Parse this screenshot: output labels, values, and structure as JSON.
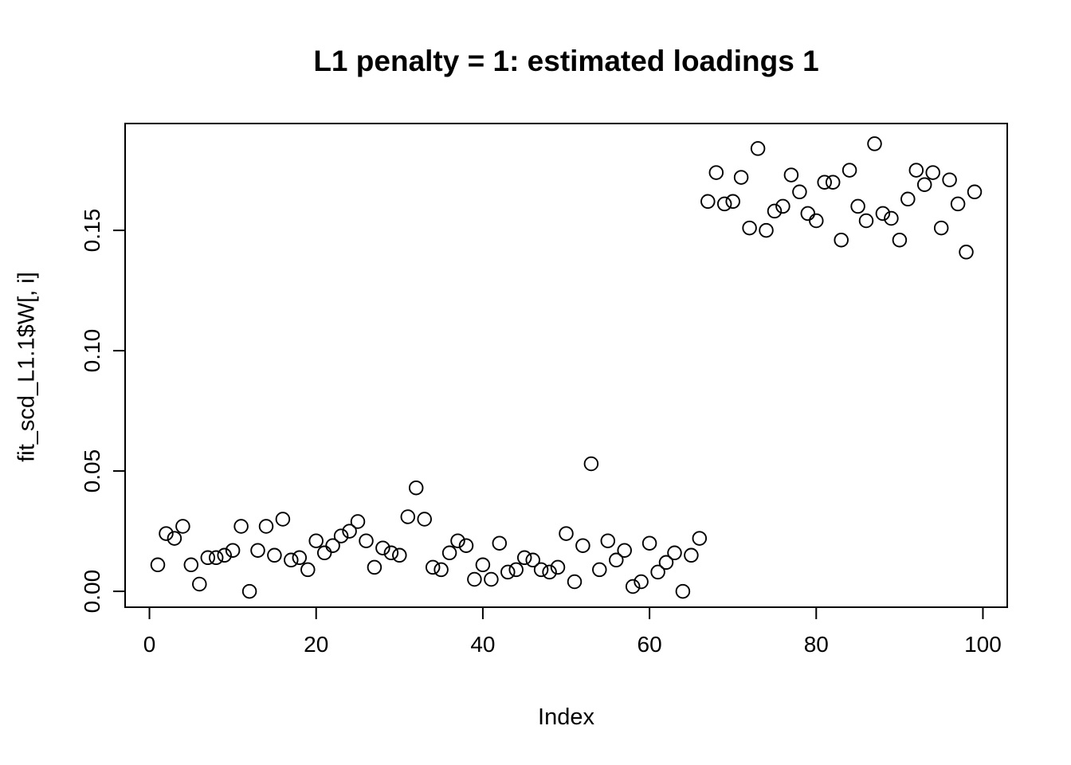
{
  "chart_data": {
    "type": "scatter",
    "title": "L1 penalty = 1: estimated loadings 1",
    "xlabel": "Index",
    "ylabel": "fit_scd_L1.1$W[, i]",
    "x_ticks": [
      0,
      20,
      40,
      60,
      80,
      100
    ],
    "x_tick_labels": [
      "0",
      "20",
      "40",
      "60",
      "80",
      "100"
    ],
    "y_ticks": [
      0.0,
      0.05,
      0.1,
      0.15
    ],
    "y_tick_labels": [
      "0.00",
      "0.05",
      "0.10",
      "0.15"
    ],
    "xlim": [
      -2.92,
      102.92
    ],
    "ylim": [
      -0.0066,
      0.1944
    ],
    "grid": false,
    "legend": null,
    "point_style": "open-circle",
    "colors": {
      "points": "#000000",
      "axis": "#000000",
      "background": "#ffffff"
    },
    "x": [
      1,
      2,
      3,
      4,
      5,
      6,
      7,
      8,
      9,
      10,
      11,
      12,
      13,
      14,
      15,
      16,
      17,
      18,
      19,
      20,
      21,
      22,
      23,
      24,
      25,
      26,
      27,
      28,
      29,
      30,
      31,
      32,
      33,
      34,
      35,
      36,
      37,
      38,
      39,
      40,
      41,
      42,
      43,
      44,
      45,
      46,
      47,
      48,
      49,
      50,
      51,
      52,
      53,
      54,
      55,
      56,
      57,
      58,
      59,
      60,
      61,
      62,
      63,
      64,
      65,
      66,
      67,
      68,
      69,
      70,
      71,
      72,
      73,
      74,
      75,
      76,
      77,
      78,
      79,
      80,
      81,
      82,
      83,
      84,
      85,
      86,
      87,
      88,
      89,
      90,
      91,
      92,
      93,
      94,
      95,
      96,
      97,
      98,
      99
    ],
    "y": [
      0.011,
      0.024,
      0.022,
      0.027,
      0.011,
      0.003,
      0.014,
      0.014,
      0.015,
      0.017,
      0.027,
      0.0,
      0.017,
      0.027,
      0.015,
      0.03,
      0.013,
      0.014,
      0.009,
      0.021,
      0.016,
      0.019,
      0.023,
      0.025,
      0.029,
      0.021,
      0.01,
      0.018,
      0.016,
      0.015,
      0.031,
      0.043,
      0.03,
      0.01,
      0.009,
      0.016,
      0.021,
      0.019,
      0.005,
      0.011,
      0.005,
      0.02,
      0.008,
      0.009,
      0.014,
      0.013,
      0.009,
      0.008,
      0.01,
      0.024,
      0.004,
      0.019,
      0.053,
      0.009,
      0.021,
      0.013,
      0.017,
      0.002,
      0.004,
      0.02,
      0.008,
      0.012,
      0.016,
      0.0,
      0.015,
      0.022,
      0.162,
      0.174,
      0.161,
      0.162,
      0.172,
      0.151,
      0.184,
      0.15,
      0.158,
      0.16,
      0.173,
      0.166,
      0.157,
      0.154,
      0.17,
      0.17,
      0.146,
      0.175,
      0.16,
      0.154,
      0.186,
      0.157,
      0.155,
      0.146,
      0.163,
      0.175,
      0.169,
      0.174,
      0.151,
      0.171,
      0.161,
      0.141,
      0.166
    ]
  }
}
